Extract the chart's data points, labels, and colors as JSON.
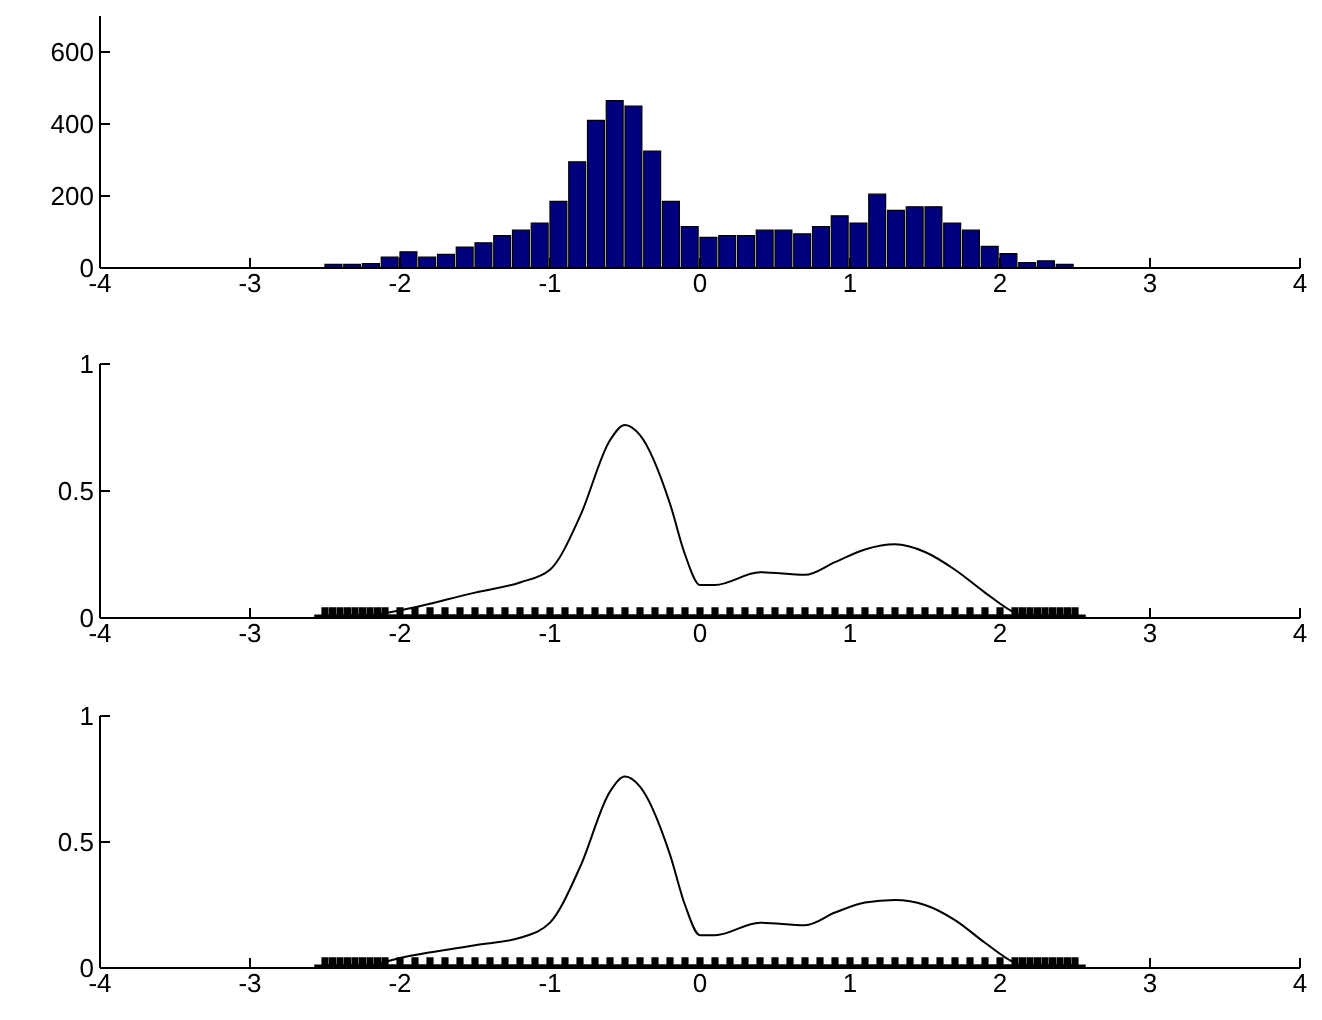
{
  "chart_data": [
    {
      "type": "histogram",
      "color": "#00007f",
      "bins": [
        -2.5,
        -2.375,
        -2.25,
        -2.125,
        -2,
        -1.875,
        -1.75,
        -1.625,
        -1.5,
        -1.375,
        -1.25,
        -1.125,
        -1,
        -0.875,
        -0.75,
        -0.625,
        -0.5,
        -0.375,
        -0.25,
        -0.125,
        0,
        0.125,
        0.25,
        0.375,
        0.5,
        0.625,
        0.75,
        0.875,
        1,
        1.125,
        1.25,
        1.375,
        1.5,
        1.625,
        1.75,
        1.875,
        2,
        2.125,
        2.25,
        2.375,
        2.5
      ],
      "values": [
        10,
        10,
        12,
        30,
        45,
        30,
        38,
        58,
        70,
        90,
        105,
        125,
        185,
        295,
        410,
        465,
        450,
        325,
        185,
        115,
        85,
        90,
        90,
        105,
        105,
        95,
        115,
        145,
        125,
        205,
        160,
        170,
        170,
        125,
        105,
        60,
        40,
        15,
        20,
        10
      ],
      "xlim": [
        -4,
        4
      ],
      "xticks": [
        -4,
        -3,
        -2,
        -1,
        0,
        1,
        2,
        3,
        4
      ],
      "ylim": [
        0,
        700
      ],
      "yticks": [
        0,
        200,
        400,
        600
      ],
      "grid": false
    },
    {
      "type": "line",
      "xlim": [
        -4,
        4
      ],
      "xticks": [
        -4,
        -3,
        -2,
        -1,
        0,
        1,
        2,
        3,
        4
      ],
      "ylim": [
        0,
        1
      ],
      "yticks": [
        0,
        0.5,
        1
      ],
      "grid": false,
      "series": [
        {
          "type": "line",
          "color": "#000000",
          "x": [
            -3.2,
            -2.5,
            -2.2,
            -2,
            -1.5,
            -1.2,
            -1,
            -0.8,
            -0.6,
            -0.5,
            -0.4,
            -0.2,
            -0.1,
            0,
            0.1,
            0.4,
            0.7,
            0.9,
            1.1,
            1.3,
            1.5,
            1.7,
            1.9,
            2.1,
            2.2,
            3.2
          ],
          "values": [
            0,
            0,
            0.01,
            0.03,
            0.1,
            0.14,
            0.19,
            0.4,
            0.7,
            0.76,
            0.72,
            0.45,
            0.25,
            0.13,
            0.13,
            0.18,
            0.17,
            0.22,
            0.27,
            0.29,
            0.26,
            0.19,
            0.1,
            0.02,
            0,
            0
          ]
        },
        {
          "type": "scatter",
          "marker": "cross",
          "color": "#000000",
          "x": [
            -2.5,
            -2.45,
            -2.4,
            -2.35,
            -2.3,
            -2.25,
            -2.2,
            -2.15,
            -2.1,
            -2,
            -1.9,
            -1.8,
            -1.7,
            -1.6,
            -1.5,
            -1.4,
            -1.3,
            -1.2,
            -1.1,
            -1,
            -0.9,
            -0.8,
            -0.7,
            -0.6,
            -0.5,
            -0.4,
            -0.3,
            -0.2,
            -0.1,
            0,
            0.1,
            0.2,
            0.3,
            0.4,
            0.5,
            0.6,
            0.7,
            0.8,
            0.9,
            1,
            1.1,
            1.2,
            1.3,
            1.4,
            1.5,
            1.6,
            1.7,
            1.8,
            1.9,
            2,
            2.1,
            2.15,
            2.2,
            2.25,
            2.3,
            2.35,
            2.4,
            2.45,
            2.5
          ],
          "values": [
            0,
            0,
            0,
            0,
            0,
            0,
            0,
            0,
            0,
            0,
            0,
            0,
            0,
            0,
            0,
            0,
            0,
            0,
            0,
            0,
            0,
            0,
            0,
            0,
            0,
            0,
            0,
            0,
            0,
            0,
            0,
            0,
            0,
            0,
            0,
            0,
            0,
            0,
            0,
            0,
            0,
            0,
            0,
            0,
            0,
            0,
            0,
            0,
            0,
            0,
            0,
            0,
            0,
            0,
            0,
            0,
            0,
            0,
            0
          ]
        }
      ]
    },
    {
      "type": "line",
      "xlim": [
        -4,
        4
      ],
      "xticks": [
        -4,
        -3,
        -2,
        -1,
        0,
        1,
        2,
        3,
        4
      ],
      "ylim": [
        0,
        1
      ],
      "yticks": [
        0,
        0.5,
        1
      ],
      "grid": false,
      "series": [
        {
          "type": "line",
          "color": "#000000",
          "x": [
            -3.2,
            -2.5,
            -2.2,
            -2,
            -1.5,
            -1.2,
            -1,
            -0.8,
            -0.6,
            -0.5,
            -0.4,
            -0.2,
            -0.1,
            0,
            0.1,
            0.4,
            0.7,
            0.9,
            1.1,
            1.3,
            1.5,
            1.7,
            1.9,
            2.1,
            2.2,
            3.2
          ],
          "values": [
            0,
            0,
            0.01,
            0.04,
            0.09,
            0.12,
            0.18,
            0.4,
            0.7,
            0.76,
            0.72,
            0.45,
            0.25,
            0.13,
            0.13,
            0.18,
            0.17,
            0.22,
            0.26,
            0.27,
            0.25,
            0.19,
            0.1,
            0.02,
            0,
            0
          ]
        },
        {
          "type": "scatter",
          "marker": "cross",
          "color": "#000000",
          "x": [
            -2.5,
            -2.45,
            -2.4,
            -2.35,
            -2.3,
            -2.25,
            -2.2,
            -2.15,
            -2.1,
            -2,
            -1.9,
            -1.8,
            -1.7,
            -1.6,
            -1.5,
            -1.4,
            -1.3,
            -1.2,
            -1.1,
            -1,
            -0.9,
            -0.8,
            -0.7,
            -0.6,
            -0.5,
            -0.4,
            -0.3,
            -0.2,
            -0.1,
            0,
            0.1,
            0.2,
            0.3,
            0.4,
            0.5,
            0.6,
            0.7,
            0.8,
            0.9,
            1,
            1.1,
            1.2,
            1.3,
            1.4,
            1.5,
            1.6,
            1.7,
            1.8,
            1.9,
            2,
            2.1,
            2.15,
            2.2,
            2.25,
            2.3,
            2.35,
            2.4,
            2.45,
            2.5
          ],
          "values": [
            0,
            0,
            0,
            0,
            0,
            0,
            0,
            0,
            0,
            0,
            0,
            0,
            0,
            0,
            0,
            0,
            0,
            0,
            0,
            0,
            0,
            0,
            0,
            0,
            0,
            0,
            0,
            0,
            0,
            0,
            0,
            0,
            0,
            0,
            0,
            0,
            0,
            0,
            0,
            0,
            0,
            0,
            0,
            0,
            0,
            0,
            0,
            0,
            0,
            0,
            0,
            0,
            0,
            0,
            0,
            0,
            0,
            0,
            0
          ]
        }
      ]
    }
  ]
}
